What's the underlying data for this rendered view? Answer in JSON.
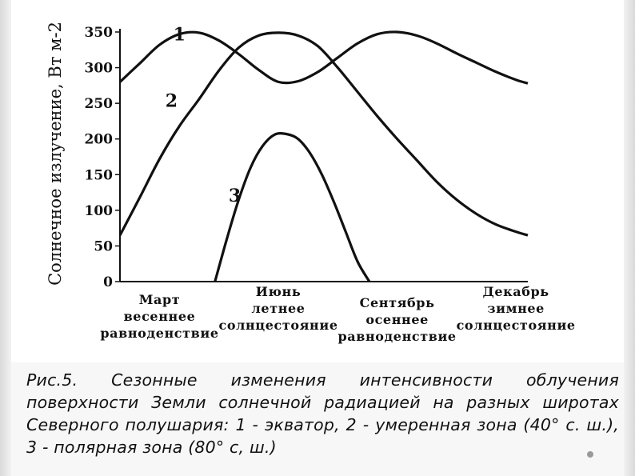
{
  "chart_data": {
    "type": "line",
    "ylabel": "Солнечное излучение, Вт м-2",
    "ylim": [
      0,
      350
    ],
    "yticks": [
      0,
      50,
      100,
      150,
      200,
      250,
      300,
      350
    ],
    "x_month_range": [
      2.0,
      12.3
    ],
    "x_labels": [
      {
        "x": 3.0,
        "lines": [
          "Март",
          "весеннее",
          "равноденствие"
        ]
      },
      {
        "x": 6.0,
        "lines": [
          "Июнь",
          "летнее",
          "солнцестояние"
        ]
      },
      {
        "x": 9.0,
        "lines": [
          "Сентябрь",
          "осеннее",
          "равноденствие"
        ]
      },
      {
        "x": 12.0,
        "lines": [
          "Декабрь",
          "зимнее",
          "солнцестояние"
        ]
      }
    ],
    "series": [
      {
        "name": "1",
        "x": [
          2.0,
          2.5,
          3.0,
          3.5,
          4.0,
          4.5,
          5.0,
          5.5,
          6.0,
          6.5,
          7.0,
          7.5,
          8.0,
          8.5,
          9.0,
          9.5,
          10.0,
          10.5,
          11.0,
          11.5,
          12.0,
          12.3
        ],
        "values": [
          280,
          306,
          332,
          347,
          349,
          338,
          319,
          297,
          280,
          281,
          294,
          314,
          334,
          347,
          350,
          345,
          334,
          320,
          307,
          294,
          283,
          278
        ]
      },
      {
        "name": "2",
        "x": [
          2.0,
          2.5,
          3.0,
          3.5,
          4.0,
          4.5,
          5.0,
          5.5,
          6.0,
          6.5,
          7.0,
          7.5,
          8.0,
          8.5,
          9.0,
          9.5,
          10.0,
          10.5,
          11.0,
          11.5,
          12.0,
          12.3
        ],
        "values": [
          65,
          118,
          172,
          218,
          256,
          296,
          328,
          345,
          349,
          345,
          330,
          300,
          266,
          232,
          200,
          170,
          140,
          115,
          95,
          80,
          70,
          65
        ]
      },
      {
        "name": "3",
        "x": [
          4.4,
          4.7,
          5.0,
          5.3,
          5.6,
          5.9,
          6.2,
          6.5,
          6.8,
          7.1,
          7.4,
          7.7,
          8.0,
          8.3
        ],
        "values": [
          0,
          60,
          115,
          160,
          190,
          206,
          207,
          200,
          180,
          150,
          112,
          70,
          28,
          0
        ]
      }
    ],
    "series_labels": [
      {
        "text": "1",
        "x": 3.5,
        "y": 338
      },
      {
        "text": "2",
        "x": 3.3,
        "y": 245
      },
      {
        "text": "3",
        "x": 4.9,
        "y": 112
      }
    ]
  },
  "caption": "Рис.5. Сезонные изменения интенсивности облучения поверхности Земли солнечной радиацией на разных широтах Северного полушария: 1 - экватор, 2 - умеренная зона (40° с. ш.), 3 - полярная зона (80° с, ш.)"
}
